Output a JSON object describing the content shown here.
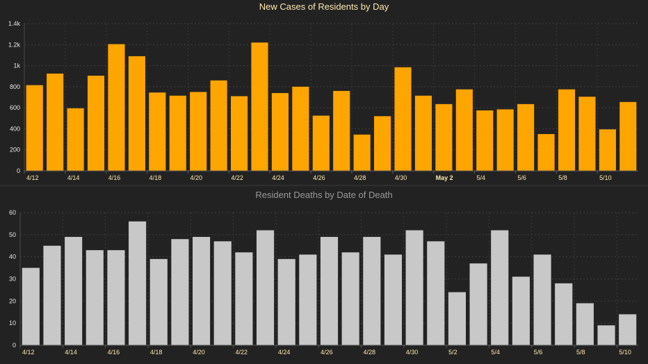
{
  "chart_data": [
    {
      "type": "bar",
      "title": "New Cases of Residents by Day",
      "xlabel": "",
      "ylabel": "",
      "ylim": [
        0,
        1400
      ],
      "yticks": [
        0,
        200,
        400,
        600,
        800,
        1000,
        1200,
        1400
      ],
      "ytick_labels": [
        "0",
        "200",
        "400",
        "600",
        "800",
        "1k",
        "1.2k",
        "1.4k"
      ],
      "categories": [
        "4/12",
        "4/13",
        "4/14",
        "4/15",
        "4/16",
        "4/17",
        "4/18",
        "4/19",
        "4/20",
        "4/21",
        "4/22",
        "4/23",
        "4/24",
        "4/25",
        "4/26",
        "4/27",
        "4/28",
        "4/29",
        "4/30",
        "5/1",
        "May 2",
        "5/3",
        "5/4",
        "5/5",
        "5/6",
        "5/7",
        "5/8",
        "5/9",
        "5/10",
        "5/11"
      ],
      "xtick_labels": [
        "4/12",
        "4/14",
        "4/16",
        "4/18",
        "4/20",
        "4/22",
        "4/24",
        "4/26",
        "4/28",
        "4/30",
        "May 2",
        "5/4",
        "5/6",
        "5/8",
        "5/10"
      ],
      "values": [
        815,
        925,
        595,
        905,
        1205,
        1090,
        745,
        715,
        750,
        860,
        710,
        1220,
        740,
        800,
        525,
        760,
        345,
        520,
        985,
        715,
        635,
        775,
        575,
        585,
        635,
        350,
        775,
        705,
        395,
        655
      ],
      "bar_color": "#ffa500",
      "grid": true
    },
    {
      "type": "bar",
      "title": "Resident Deaths by Date of Death",
      "xlabel": "",
      "ylabel": "",
      "ylim": [
        0,
        60
      ],
      "yticks": [
        0,
        10,
        20,
        30,
        40,
        50,
        60
      ],
      "ytick_labels": [
        "0",
        "10",
        "20",
        "30",
        "40",
        "50",
        "60"
      ],
      "categories": [
        "4/12",
        "4/13",
        "4/14",
        "4/15",
        "4/16",
        "4/17",
        "4/18",
        "4/19",
        "4/20",
        "4/21",
        "4/22",
        "4/23",
        "4/24",
        "4/25",
        "4/26",
        "4/27",
        "4/28",
        "4/29",
        "4/30",
        "5/1",
        "5/2",
        "5/3",
        "5/4",
        "5/5",
        "5/6",
        "5/7",
        "5/8",
        "5/9",
        "5/10"
      ],
      "xtick_labels": [
        "4/12",
        "4/14",
        "4/16",
        "4/18",
        "4/20",
        "4/22",
        "4/24",
        "4/26",
        "4/28",
        "4/30",
        "5/2",
        "5/4",
        "5/6",
        "5/8",
        "5/10"
      ],
      "values": [
        35,
        45,
        49,
        43,
        43,
        56,
        39,
        48,
        49,
        47,
        42,
        52,
        39,
        41,
        49,
        42,
        49,
        41,
        52,
        47,
        24,
        37,
        52,
        31,
        41,
        28,
        19,
        9,
        14
      ],
      "bar_color": "#c8c8c8",
      "grid": true
    }
  ]
}
